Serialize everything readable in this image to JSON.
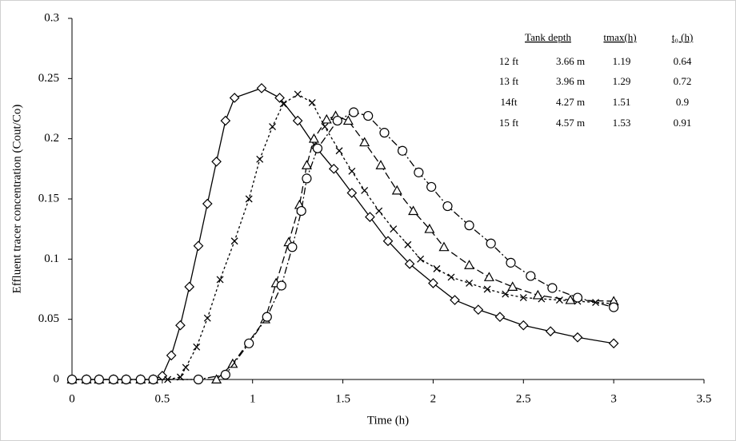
{
  "chart_data": {
    "type": "line",
    "xlabel": "Time (h)",
    "ylabel": "Effluent  tracer concentration (Cout/Co)",
    "xlim": [
      0,
      3.5
    ],
    "xticks": [
      0,
      0.5,
      1,
      1.5,
      2,
      2.5,
      3,
      3.5
    ],
    "ylim": [
      0,
      0.3
    ],
    "yticks": [
      0,
      0.05,
      0.1,
      0.15,
      0.2,
      0.25,
      0.3
    ],
    "grid": false,
    "series": [
      {
        "color": "#000000",
        "marker": "diamond",
        "dash": "none",
        "x": [
          0,
          0.08,
          0.15,
          0.23,
          0.3,
          0.38,
          0.45,
          0.5,
          0.55,
          0.6,
          0.65,
          0.7,
          0.75,
          0.8,
          0.85,
          0.9,
          1.05,
          1.15,
          1.25,
          1.35,
          1.45,
          1.55,
          1.65,
          1.75,
          1.87,
          2.0,
          2.12,
          2.25,
          2.37,
          2.5,
          2.65,
          2.8,
          3.0
        ],
        "values": [
          0,
          0,
          0,
          0,
          0,
          0,
          0,
          0.003,
          0.02,
          0.045,
          0.077,
          0.111,
          0.146,
          0.181,
          0.215,
          0.234,
          0.242,
          0.234,
          0.215,
          0.193,
          0.175,
          0.155,
          0.135,
          0.115,
          0.096,
          0.08,
          0.066,
          0.058,
          0.052,
          0.045,
          0.04,
          0.035,
          0.03
        ]
      },
      {
        "color": "#000000",
        "marker": "x",
        "dash": "3,3",
        "x": [
          0,
          0.08,
          0.15,
          0.23,
          0.3,
          0.38,
          0.45,
          0.53,
          0.6,
          0.63,
          0.69,
          0.75,
          0.82,
          0.9,
          0.98,
          1.04,
          1.11,
          1.17,
          1.25,
          1.33,
          1.4,
          1.48,
          1.55,
          1.62,
          1.7,
          1.78,
          1.86,
          1.93,
          2.02,
          2.1,
          2.2,
          2.3,
          2.4,
          2.5,
          2.6,
          2.7,
          2.8,
          2.9,
          3.0
        ],
        "values": [
          0,
          0,
          0,
          0,
          0,
          0,
          0,
          0,
          0.002,
          0.01,
          0.027,
          0.051,
          0.083,
          0.115,
          0.15,
          0.183,
          0.21,
          0.229,
          0.237,
          0.23,
          0.21,
          0.19,
          0.173,
          0.157,
          0.14,
          0.125,
          0.112,
          0.1,
          0.092,
          0.085,
          0.08,
          0.075,
          0.071,
          0.068,
          0.067,
          0.066,
          0.065,
          0.064,
          0.063
        ]
      },
      {
        "color": "#000000",
        "marker": "triangle",
        "dash": "9,4",
        "x": [
          0,
          0.08,
          0.15,
          0.23,
          0.3,
          0.38,
          0.45,
          0.8,
          0.89,
          1.07,
          1.13,
          1.2,
          1.26,
          1.3,
          1.34,
          1.41,
          1.46,
          1.53,
          1.62,
          1.71,
          1.8,
          1.89,
          1.98,
          2.06,
          2.2,
          2.31,
          2.44,
          2.58,
          2.76,
          3.0
        ],
        "values": [
          0,
          0,
          0,
          0,
          0,
          0,
          0,
          0,
          0.013,
          0.05,
          0.08,
          0.114,
          0.145,
          0.178,
          0.2,
          0.216,
          0.219,
          0.215,
          0.197,
          0.178,
          0.157,
          0.14,
          0.125,
          0.11,
          0.095,
          0.085,
          0.077,
          0.07,
          0.066,
          0.065
        ]
      },
      {
        "color": "#000000",
        "marker": "circle",
        "dash": "9,3,2,3",
        "x": [
          0,
          0.08,
          0.15,
          0.23,
          0.3,
          0.38,
          0.45,
          0.7,
          0.85,
          0.98,
          1.08,
          1.16,
          1.22,
          1.27,
          1.3,
          1.36,
          1.47,
          1.56,
          1.64,
          1.73,
          1.83,
          1.92,
          1.99,
          2.08,
          2.2,
          2.32,
          2.43,
          2.54,
          2.66,
          2.8,
          3.0
        ],
        "values": [
          0,
          0,
          0,
          0,
          0,
          0,
          0,
          0,
          0.004,
          0.03,
          0.052,
          0.078,
          0.11,
          0.14,
          0.167,
          0.192,
          0.215,
          0.222,
          0.219,
          0.205,
          0.19,
          0.172,
          0.16,
          0.144,
          0.128,
          0.113,
          0.097,
          0.086,
          0.076,
          0.068,
          0.06
        ]
      }
    ],
    "table": {
      "headers": [
        "Tank depth",
        "tmax(h)",
        "t₀ (h)"
      ],
      "rows": [
        [
          "12 ft",
          "3.66 m",
          "1.19",
          "0.64"
        ],
        [
          "13 ft",
          "3.96 m",
          "1.29",
          "0.72"
        ],
        [
          "14ft",
          "4.27 m",
          "1.51",
          "0.9"
        ],
        [
          "15 ft",
          "4.57 m",
          "1.53",
          "0.91"
        ]
      ]
    }
  }
}
